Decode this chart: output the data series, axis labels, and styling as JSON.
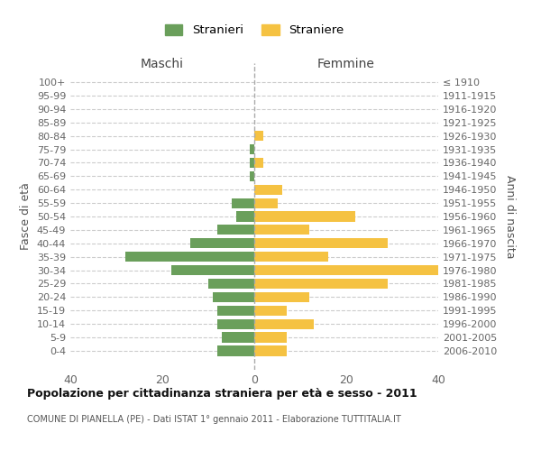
{
  "age_groups": [
    "100+",
    "95-99",
    "90-94",
    "85-89",
    "80-84",
    "75-79",
    "70-74",
    "65-69",
    "60-64",
    "55-59",
    "50-54",
    "45-49",
    "40-44",
    "35-39",
    "30-34",
    "25-29",
    "20-24",
    "15-19",
    "10-14",
    "5-9",
    "0-4"
  ],
  "birth_years": [
    "≤ 1910",
    "1911-1915",
    "1916-1920",
    "1921-1925",
    "1926-1930",
    "1931-1935",
    "1936-1940",
    "1941-1945",
    "1946-1950",
    "1951-1955",
    "1956-1960",
    "1961-1965",
    "1966-1970",
    "1971-1975",
    "1976-1980",
    "1981-1985",
    "1986-1990",
    "1991-1995",
    "1996-2000",
    "2001-2005",
    "2006-2010"
  ],
  "maschi": [
    0,
    0,
    0,
    0,
    0,
    1,
    1,
    1,
    0,
    5,
    4,
    8,
    14,
    28,
    18,
    10,
    9,
    8,
    8,
    7,
    8
  ],
  "femmine": [
    0,
    0,
    0,
    0,
    2,
    0,
    2,
    0,
    6,
    5,
    22,
    12,
    29,
    16,
    40,
    29,
    12,
    7,
    13,
    7,
    7
  ],
  "maschi_color": "#6a9f5b",
  "femmine_color": "#f5c242",
  "background_color": "#ffffff",
  "grid_color": "#cccccc",
  "title": "Popolazione per cittadinanza straniera per età e sesso - 2011",
  "subtitle": "COMUNE DI PIANELLA (PE) - Dati ISTAT 1° gennaio 2011 - Elaborazione TUTTITALIA.IT",
  "label_maschi": "Maschi",
  "label_femmine": "Femmine",
  "ylabel_left": "Fasce di età",
  "ylabel_right": "Anni di nascita",
  "xlim": 40,
  "legend_stranieri": "Stranieri",
  "legend_straniere": "Straniere"
}
